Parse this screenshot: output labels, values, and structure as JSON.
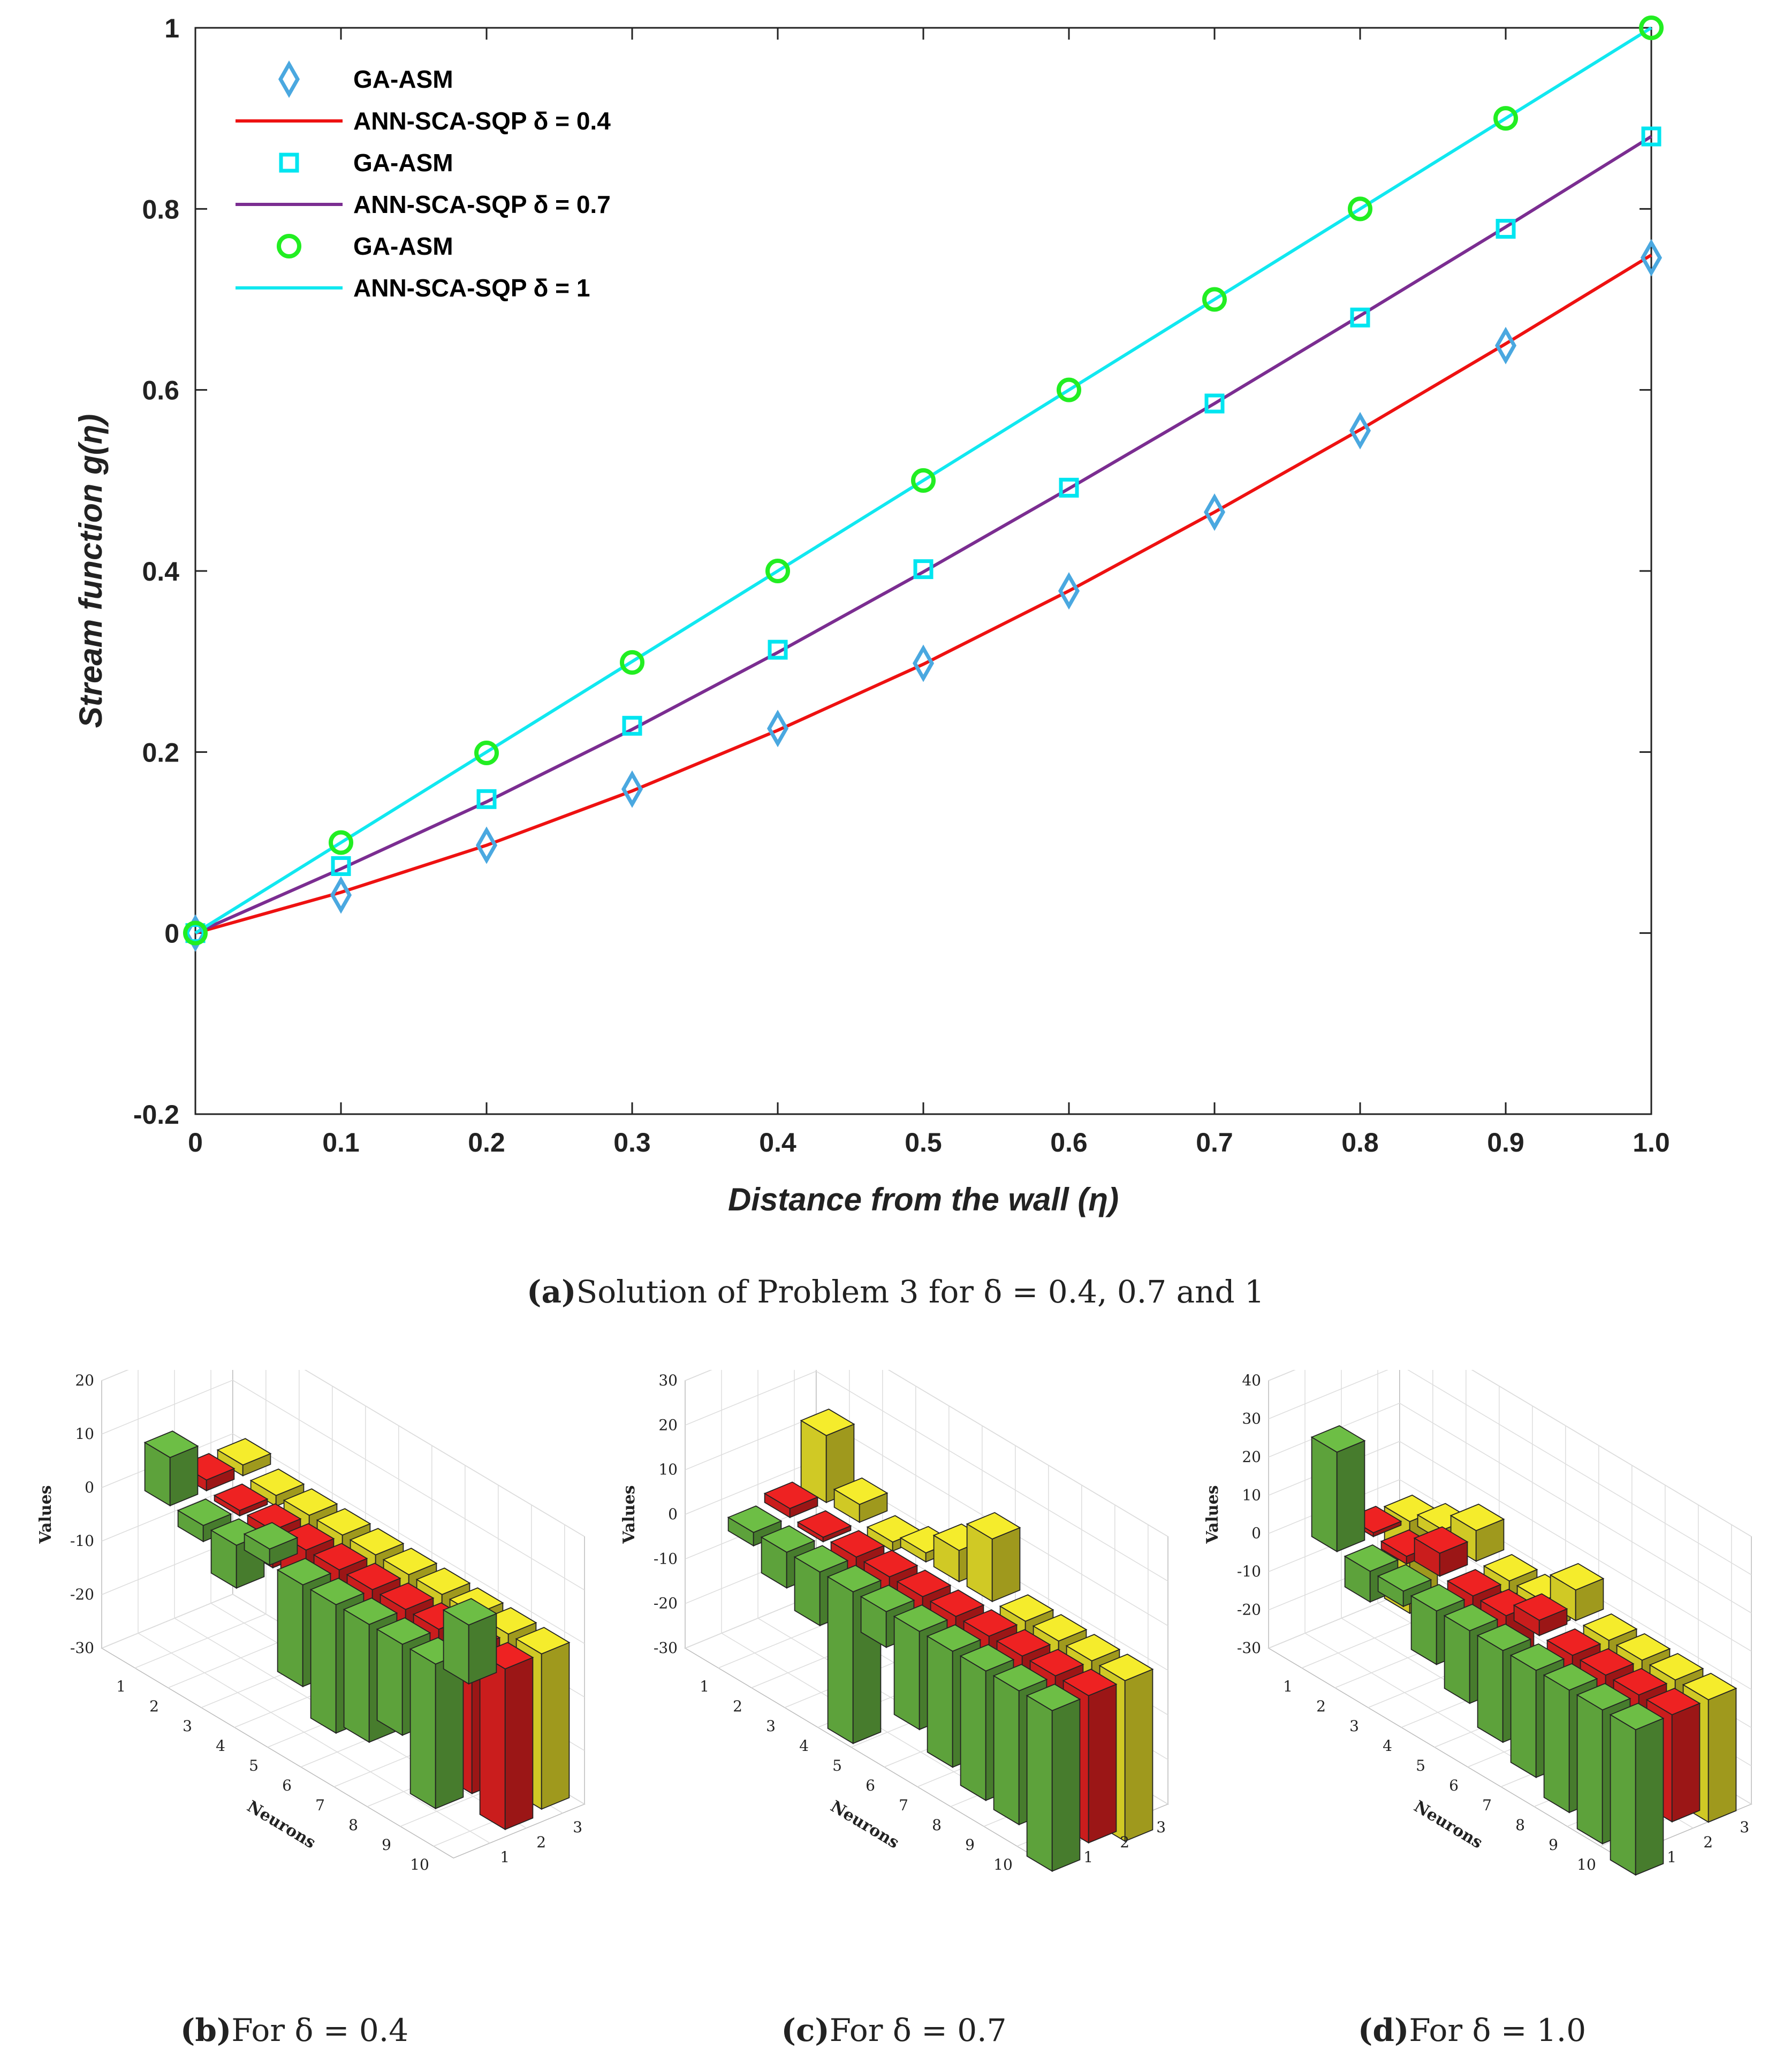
{
  "chart_data": [
    {
      "type": "line",
      "xlabel": "Distance from the wall (η)",
      "ylabel": "Stream function g(η)",
      "xlim": [
        0,
        1.0
      ],
      "ylim": [
        -0.2,
        1
      ],
      "xticks": [
        "0",
        "0.1",
        "0.2",
        "0.3",
        "0.4",
        "0.5",
        "0.6",
        "0.7",
        "0.8",
        "0.9",
        "1.0"
      ],
      "yticks": [
        "-0.2",
        "0",
        "0.2",
        "0.4",
        "0.6",
        "0.8",
        "1"
      ],
      "x": [
        0,
        0.1,
        0.2,
        0.3,
        0.4,
        0.5,
        0.6,
        0.7,
        0.8,
        0.9,
        1.0
      ],
      "legend_position": "top-left",
      "series": [
        {
          "name": "GA-ASM",
          "kind": "marker",
          "marker": "diamond",
          "color": "#4aa8e0",
          "values": [
            0,
            0.042,
            0.097,
            0.159,
            0.226,
            0.298,
            0.378,
            0.465,
            0.555,
            0.649,
            0.746
          ]
        },
        {
          "name": "ANN-SCA-SQP  δ = 0.4",
          "kind": "line",
          "color": "#ee1111",
          "values": [
            0,
            0.045,
            0.097,
            0.157,
            0.224,
            0.297,
            0.378,
            0.465,
            0.556,
            0.651,
            0.749
          ]
        },
        {
          "name": "GA-ASM",
          "kind": "marker",
          "marker": "square",
          "color": "#00e5f0",
          "values": [
            0,
            0.074,
            0.148,
            0.229,
            0.313,
            0.402,
            0.492,
            0.585,
            0.68,
            0.778,
            0.88
          ]
        },
        {
          "name": "ANN-SCA-SQP  δ = 0.7",
          "kind": "line",
          "color": "#7b2d91",
          "values": [
            0,
            0.071,
            0.145,
            0.225,
            0.31,
            0.399,
            0.491,
            0.585,
            0.682,
            0.78,
            0.88
          ]
        },
        {
          "name": "GA-ASM",
          "kind": "marker",
          "marker": "circle",
          "color": "#22ee22",
          "values": [
            0,
            0.1,
            0.199,
            0.299,
            0.4,
            0.5,
            0.6,
            0.7,
            0.8,
            0.9,
            1.0
          ]
        },
        {
          "name": "ANN-SCA-SQP  δ = 1",
          "kind": "line",
          "color": "#11e8f0",
          "values": [
            0,
            0.1,
            0.2,
            0.3,
            0.4,
            0.5,
            0.6,
            0.7,
            0.8,
            0.9,
            1.0
          ]
        }
      ]
    },
    {
      "type": "bar",
      "title": "For δ = 0.4",
      "zlabel": "Values",
      "xlabel": "Neurons",
      "zticks": [
        "20",
        "10",
        "0",
        "-10",
        "-20",
        "-30"
      ],
      "zlim": [
        -30,
        20
      ],
      "neuron_ticks": [
        "1",
        "2",
        "3",
        "4",
        "5",
        "6",
        "7",
        "8",
        "9",
        "10"
      ],
      "depth_ticks": [
        "1",
        "2",
        "3"
      ],
      "series": [
        {
          "name": "1",
          "color": "#6dbe45",
          "values": [
            9,
            -3,
            -8,
            3,
            -19,
            -24,
            -22,
            -17,
            -27,
            11
          ]
        },
        {
          "name": "2",
          "color": "#ee2222",
          "values": [
            2,
            -1,
            -7,
            -11,
            -4,
            -15,
            -22,
            -26,
            -27,
            -30
          ]
        },
        {
          "name": "3",
          "color": "#f5ec2c",
          "values": [
            2,
            -2,
            -5,
            -9,
            -13,
            -17,
            -20,
            -24,
            -27,
            -29
          ]
        }
      ]
    },
    {
      "type": "bar",
      "title": "For δ = 0.7",
      "zlabel": "Values",
      "xlabel": "Neurons",
      "zticks": [
        "30",
        "20",
        "10",
        "0",
        "-10",
        "-20",
        "-30"
      ],
      "zlim": [
        -30,
        30
      ],
      "neuron_ticks": [
        "1",
        "2",
        "3",
        "4",
        "5",
        "6",
        "7",
        "8",
        "9",
        "10"
      ],
      "depth_ticks": [
        "1",
        "2",
        "3"
      ],
      "series": [
        {
          "name": "1",
          "color": "#6dbe45",
          "values": [
            -3,
            -8,
            -12,
            -34,
            -8,
            -22,
            -26,
            -29,
            -30,
            -36
          ]
        },
        {
          "name": "2",
          "color": "#ee2222",
          "values": [
            2,
            -1,
            -5,
            -9,
            -13,
            -17,
            -20,
            -25,
            -28,
            -33
          ]
        },
        {
          "name": "3",
          "color": "#f5ec2c",
          "values": [
            15,
            4,
            -2,
            2,
            7,
            14,
            -24,
            -28,
            -31,
            -36
          ]
        }
      ]
    },
    {
      "type": "bar",
      "title": "For δ = 1.0",
      "zlabel": "Values",
      "xlabel": "Neurons",
      "zticks": [
        "40",
        "30",
        "20",
        "10",
        "0",
        "-10",
        "-20",
        "-30"
      ],
      "zlim": [
        -30,
        40
      ],
      "neuron_ticks": [
        "1",
        "2",
        "3",
        "4",
        "5",
        "6",
        "7",
        "8",
        "9",
        "10"
      ],
      "depth_ticks": [
        "1",
        "2",
        "3"
      ],
      "series": [
        {
          "name": "1",
          "color": "#6dbe45",
          "values": [
            26,
            -8,
            -4,
            -14,
            -19,
            -24,
            -28,
            -32,
            -35,
            -38
          ]
        },
        {
          "name": "2",
          "color": "#ee2222",
          "values": [
            1,
            -2,
            6,
            -7,
            -12,
            4,
            -16,
            -20,
            -24,
            -28
          ]
        },
        {
          "name": "3",
          "color": "#f5ec2c",
          "values": [
            -24,
            3,
            8,
            -4,
            -8,
            8,
            -20,
            -24,
            -28,
            -32
          ]
        }
      ]
    }
  ],
  "captions": {
    "a_letter": "(a)",
    "a_text": "Solution of Problem 3 for δ = 0.4,  0.7 and 1",
    "b_letter": "(b)",
    "b_text": "For δ = 0.4",
    "c_letter": "(c)",
    "c_text": "For δ = 0.7",
    "d_letter": "(d)",
    "d_text": "For δ = 1.0"
  }
}
